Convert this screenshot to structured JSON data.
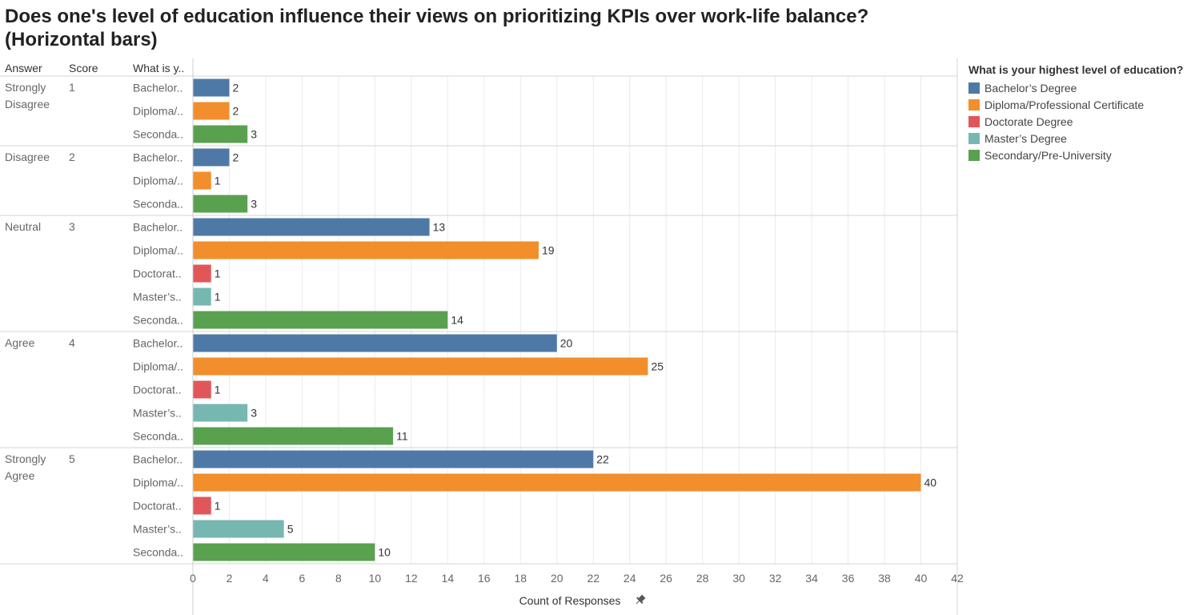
{
  "title": "Does one's level of education influence their views on prioritizing KPIs over work-life balance? (Horizontal bars)",
  "legend": {
    "title": "What is your highest level of education?",
    "items": [
      {
        "label": "Bachelor’s Degree",
        "color": "#4e79a7"
      },
      {
        "label": "Diploma/Professional Certificate",
        "color": "#f28e2b"
      },
      {
        "label": "Doctorate Degree",
        "color": "#e15759"
      },
      {
        "label": "Master’s Degree",
        "color": "#76b7b2"
      },
      {
        "label": "Secondary/Pre-University",
        "color": "#59a14f"
      }
    ]
  },
  "chart_data": {
    "type": "bar",
    "orientation": "horizontal",
    "row_headers": [
      "Answer",
      "Score",
      "What is y.."
    ],
    "xlabel": "Count of Responses",
    "xlim": [
      0,
      42
    ],
    "xticks": [
      0,
      2,
      4,
      6,
      8,
      10,
      12,
      14,
      16,
      18,
      20,
      22,
      24,
      26,
      28,
      30,
      32,
      34,
      36,
      38,
      40,
      42
    ],
    "grid": true,
    "legend_position": "right",
    "groups": [
      {
        "answer": "Strongly Disagree",
        "answer_lines": [
          "Strongly",
          "Disagree"
        ],
        "score": "1",
        "bars": [
          {
            "label": "Bachelor..",
            "category": "Bachelor’s Degree",
            "value": 2
          },
          {
            "label": "Diploma/..",
            "category": "Diploma/Professional Certificate",
            "value": 2
          },
          {
            "label": "Seconda..",
            "category": "Secondary/Pre-University",
            "value": 3
          }
        ]
      },
      {
        "answer": "Disagree",
        "answer_lines": [
          "Disagree"
        ],
        "score": "2",
        "bars": [
          {
            "label": "Bachelor..",
            "category": "Bachelor’s Degree",
            "value": 2
          },
          {
            "label": "Diploma/..",
            "category": "Diploma/Professional Certificate",
            "value": 1
          },
          {
            "label": "Seconda..",
            "category": "Secondary/Pre-University",
            "value": 3
          }
        ]
      },
      {
        "answer": "Neutral",
        "answer_lines": [
          "Neutral"
        ],
        "score": "3",
        "bars": [
          {
            "label": "Bachelor..",
            "category": "Bachelor’s Degree",
            "value": 13
          },
          {
            "label": "Diploma/..",
            "category": "Diploma/Professional Certificate",
            "value": 19
          },
          {
            "label": "Doctorat..",
            "category": "Doctorate Degree",
            "value": 1
          },
          {
            "label": "Master’s..",
            "category": "Master’s Degree",
            "value": 1
          },
          {
            "label": "Seconda..",
            "category": "Secondary/Pre-University",
            "value": 14
          }
        ]
      },
      {
        "answer": "Agree",
        "answer_lines": [
          "Agree"
        ],
        "score": "4",
        "bars": [
          {
            "label": "Bachelor..",
            "category": "Bachelor’s Degree",
            "value": 20
          },
          {
            "label": "Diploma/..",
            "category": "Diploma/Professional Certificate",
            "value": 25
          },
          {
            "label": "Doctorat..",
            "category": "Doctorate Degree",
            "value": 1
          },
          {
            "label": "Master’s..",
            "category": "Master’s Degree",
            "value": 3
          },
          {
            "label": "Seconda..",
            "category": "Secondary/Pre-University",
            "value": 11
          }
        ]
      },
      {
        "answer": "Strongly Agree",
        "answer_lines": [
          "Strongly",
          "Agree"
        ],
        "score": "5",
        "bars": [
          {
            "label": "Bachelor..",
            "category": "Bachelor’s Degree",
            "value": 22
          },
          {
            "label": "Diploma/..",
            "category": "Diploma/Professional Certificate",
            "value": 40
          },
          {
            "label": "Doctorat..",
            "category": "Doctorate Degree",
            "value": 1
          },
          {
            "label": "Master’s..",
            "category": "Master’s Degree",
            "value": 5
          },
          {
            "label": "Seconda..",
            "category": "Secondary/Pre-University",
            "value": 10
          }
        ]
      }
    ]
  }
}
